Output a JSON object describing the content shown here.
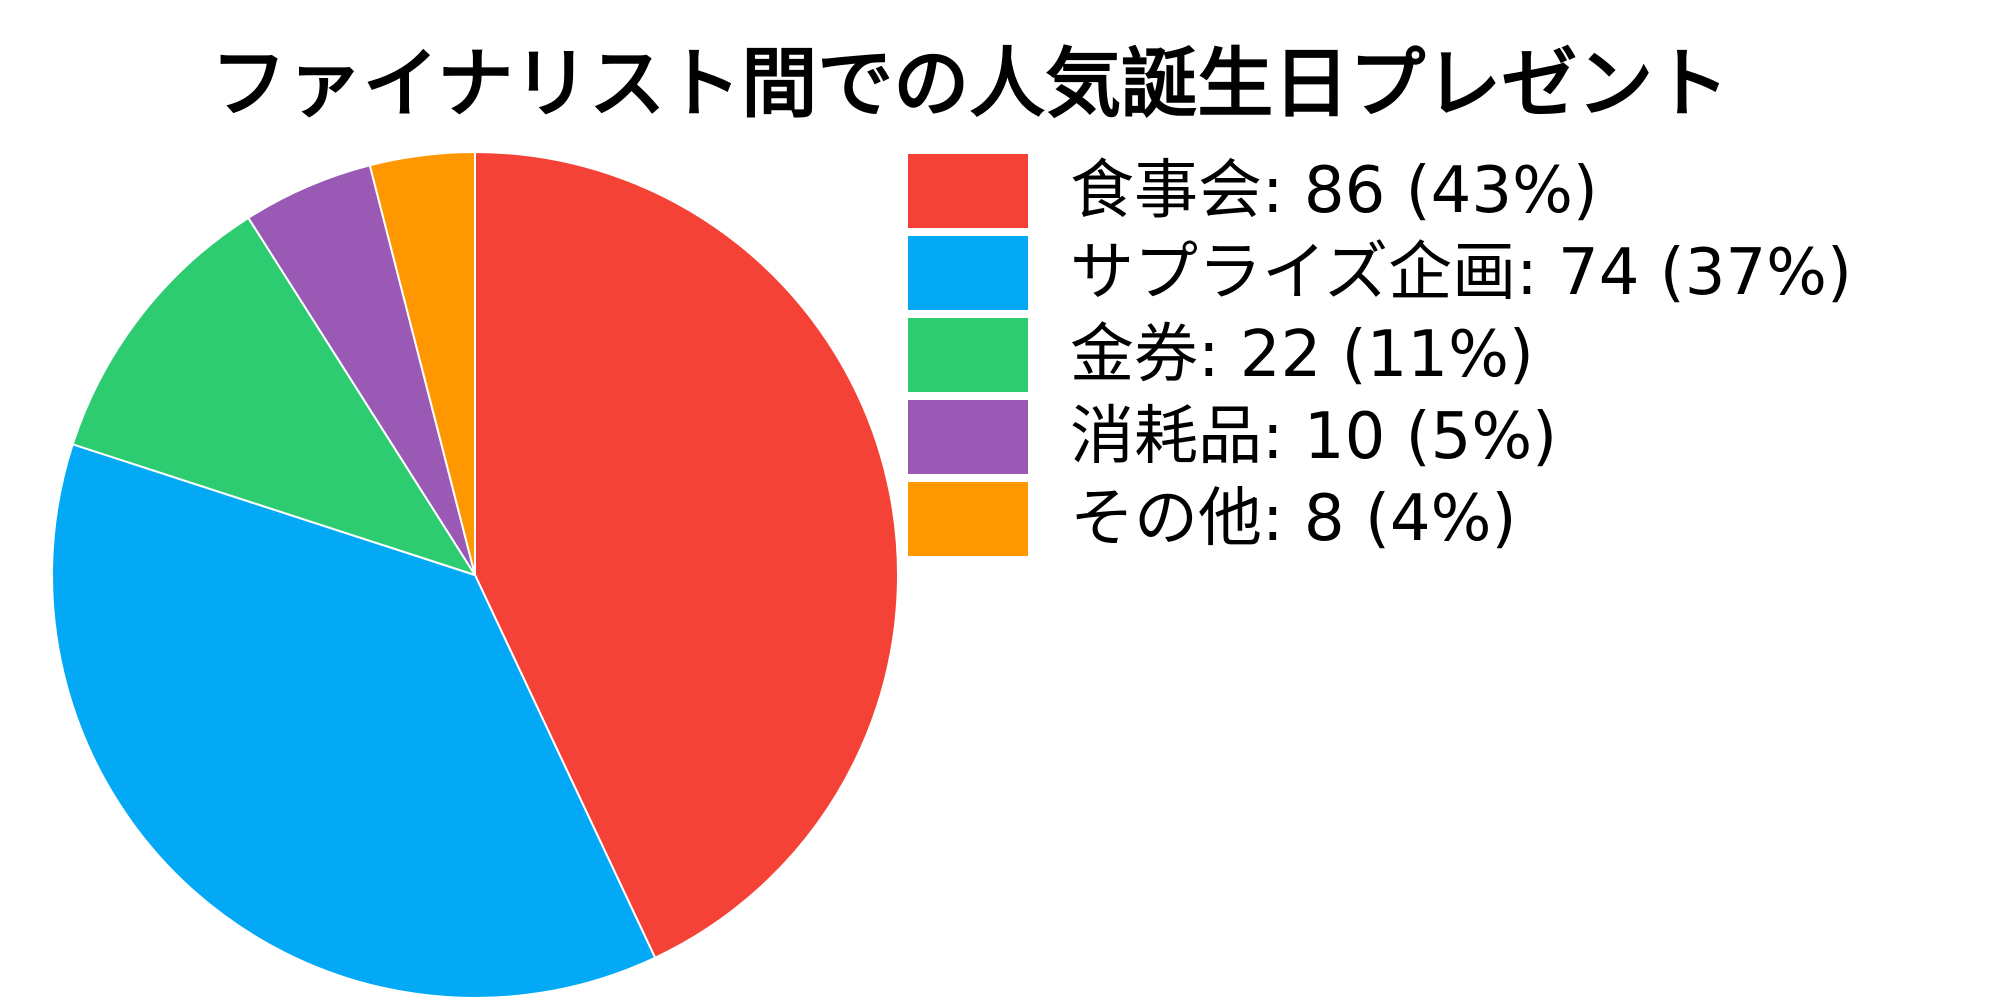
{
  "chart_data": {
    "type": "pie",
    "title": "ファイナリスト間での人気誕生日プレゼント",
    "legend_position": "right",
    "categories": [
      "食事会",
      "サプライズ企画",
      "金券",
      "消耗品",
      "その他"
    ],
    "values": [
      86,
      74,
      22,
      10,
      8
    ],
    "percentages": [
      43,
      37,
      11,
      5,
      4
    ],
    "colors": [
      "#F44336",
      "#03A9F4",
      "#2ECC71",
      "#9B59B6",
      "#FF9800"
    ],
    "legend_labels": [
      "食事会: 86 (43%)",
      "サプライズ企画: 74 (37%)",
      "金券: 22 (11%)",
      "消耗品: 10 (5%)",
      "その他: 8 (4%)"
    ]
  }
}
